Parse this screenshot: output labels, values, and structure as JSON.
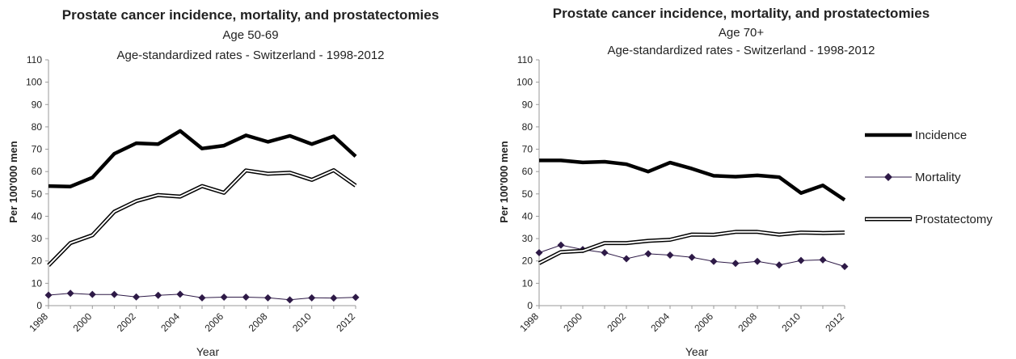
{
  "legend": {
    "incidence": "Incidence",
    "mortality": "Mortality",
    "prostatectomy": "Prostatectomy"
  },
  "chart_data": [
    {
      "type": "line",
      "title": "Prostate cancer incidence, mortality, and prostatectomies",
      "subtitle_age": "Age 50-69",
      "subtitle_desc": "Age-standardized rates - Switzerland - 1998-2012",
      "xlabel": "Year",
      "ylabel": "Per 100'000 men",
      "ylim": [
        0,
        110
      ],
      "ytick_step": 10,
      "x": [
        1998,
        1999,
        2000,
        2001,
        2002,
        2003,
        2004,
        2005,
        2006,
        2007,
        2008,
        2009,
        2010,
        2011,
        2012
      ],
      "x_tick_labels": [
        "1998",
        "2000",
        "2002",
        "2004",
        "2006",
        "2008",
        "2010",
        "2012"
      ],
      "series": [
        {
          "key": "incidence",
          "name": "Incidence",
          "style": "thick",
          "color": "#000000",
          "values": [
            53.5,
            53.3,
            57.3,
            68,
            72.7,
            72.3,
            78.2,
            70.3,
            71.6,
            76.2,
            73.3,
            76,
            72.3,
            75.8,
            66.8
          ]
        },
        {
          "key": "mortality",
          "name": "Mortality",
          "style": "diamond",
          "color": "#2e1a47",
          "values": [
            4.7,
            5.5,
            5,
            5,
            3.9,
            4.6,
            5.1,
            3.5,
            3.8,
            3.8,
            3.5,
            2.6,
            3.5,
            3.4,
            3.7
          ]
        },
        {
          "key": "prostatectomy",
          "name": "Prostatectomy",
          "style": "double",
          "color": "#000000",
          "values": [
            18,
            28,
            31.5,
            42,
            46.8,
            49.5,
            48.8,
            53.5,
            50.5,
            60.5,
            59,
            59.5,
            56.3,
            60.6,
            53.7
          ]
        }
      ]
    },
    {
      "type": "line",
      "title": "Prostate cancer incidence, mortality, and prostatectomies",
      "subtitle_age": "Age 70+",
      "subtitle_desc": "Age-standardized rates - Switzerland - 1998-2012",
      "xlabel": "Year",
      "ylabel": "Per 100'000 men",
      "ylim": [
        0,
        110
      ],
      "ytick_step": 10,
      "x": [
        1998,
        1999,
        2000,
        2001,
        2002,
        2003,
        2004,
        2005,
        2006,
        2007,
        2008,
        2009,
        2010,
        2011,
        2012
      ],
      "x_tick_labels": [
        "1998",
        "2000",
        "2002",
        "2004",
        "2006",
        "2008",
        "2010",
        "2012"
      ],
      "legend_position": "right",
      "series": [
        {
          "key": "incidence",
          "name": "Incidence",
          "style": "thick",
          "color": "#000000",
          "values": [
            65,
            65,
            64.1,
            64.4,
            63.3,
            60,
            64,
            61.3,
            58.1,
            57.7,
            58.3,
            57.5,
            50.4,
            53.8,
            47.3
          ]
        },
        {
          "key": "mortality",
          "name": "Mortality",
          "style": "diamond",
          "color": "#2e1a47",
          "values": [
            23.7,
            27.1,
            25.1,
            23.7,
            21,
            23.2,
            22.6,
            21.6,
            19.8,
            18.9,
            19.8,
            18.2,
            20.2,
            20.5,
            17.5
          ]
        },
        {
          "key": "prostatectomy",
          "name": "Prostatectomy",
          "style": "double",
          "color": "#000000",
          "values": [
            19,
            24,
            24.5,
            28,
            28,
            29,
            29.5,
            31.8,
            31.7,
            33,
            33,
            31.8,
            32.7,
            32.5,
            32.7
          ]
        }
      ]
    }
  ]
}
